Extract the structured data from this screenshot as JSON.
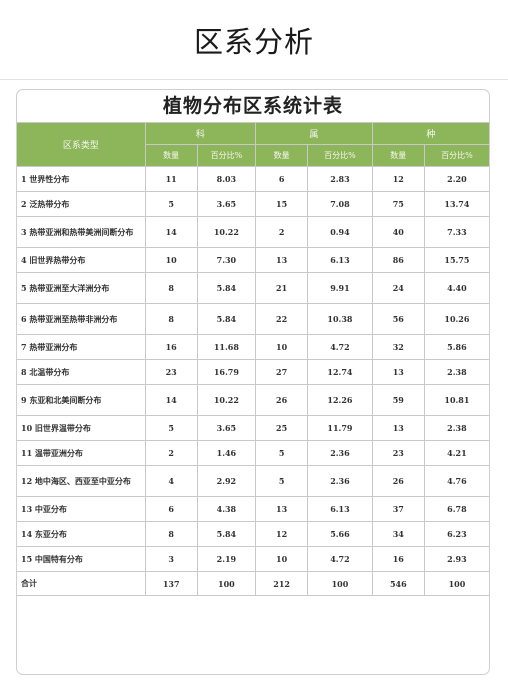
{
  "page_title": "区系分析",
  "table": {
    "title": "植物分布区系统计表",
    "row_header": "区系类型",
    "groups": [
      "科",
      "属",
      "种"
    ],
    "sub_headers": [
      "数量",
      "百分比%",
      "数量",
      "百分比%",
      "数量",
      "百分比%"
    ],
    "rows": [
      [
        "1 世界性分布",
        "11",
        "8.03",
        "6",
        "2.83",
        "12",
        "2.20"
      ],
      [
        "2 泛热带分布",
        "5",
        "3.65",
        "15",
        "7.08",
        "75",
        "13.74"
      ],
      [
        "3 热带亚洲和热带美洲间断分布",
        "14",
        "10.22",
        "2",
        "0.94",
        "40",
        "7.33"
      ],
      [
        "4 旧世界热带分布",
        "10",
        "7.30",
        "13",
        "6.13",
        "86",
        "15.75"
      ],
      [
        "5 热带亚洲至大洋洲分布",
        "8",
        "5.84",
        "21",
        "9.91",
        "24",
        "4.40"
      ],
      [
        "6 热带亚洲至热带非洲分布",
        "8",
        "5.84",
        "22",
        "10.38",
        "56",
        "10.26"
      ],
      [
        "7 热带亚洲分布",
        "16",
        "11.68",
        "10",
        "4.72",
        "32",
        "5.86"
      ],
      [
        "8 北温带分布",
        "23",
        "16.79",
        "27",
        "12.74",
        "13",
        "2.38"
      ],
      [
        "9 东亚和北美间断分布",
        "14",
        "10.22",
        "26",
        "12.26",
        "59",
        "10.81"
      ],
      [
        "10 旧世界温带分布",
        "5",
        "3.65",
        "25",
        "11.79",
        "13",
        "2.38"
      ],
      [
        "11 温带亚洲分布",
        "2",
        "1.46",
        "5",
        "2.36",
        "23",
        "4.21"
      ],
      [
        "12 地中海区、西亚至中亚分布",
        "4",
        "2.92",
        "5",
        "2.36",
        "26",
        "4.76"
      ],
      [
        "13 中亚分布",
        "6",
        "4.38",
        "13",
        "6.13",
        "37",
        "6.78"
      ],
      [
        "14 东亚分布",
        "8",
        "5.84",
        "12",
        "5.66",
        "34",
        "6.23"
      ],
      [
        "15 中国特有分布",
        "3",
        "2.19",
        "10",
        "4.72",
        "16",
        "2.93"
      ],
      [
        "合计",
        "137",
        "100",
        "212",
        "100",
        "546",
        "100"
      ]
    ],
    "header_color": "#8db55a"
  }
}
